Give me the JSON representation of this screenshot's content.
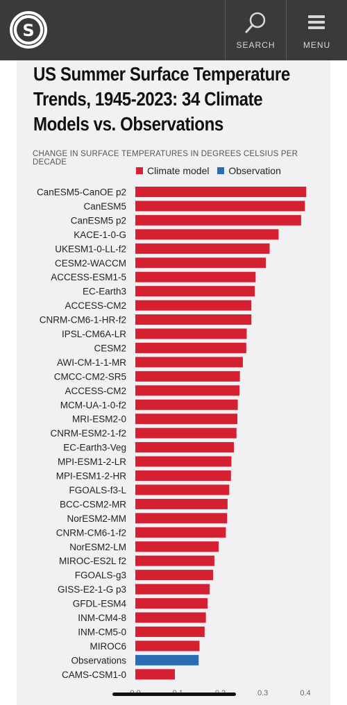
{
  "header": {
    "logo_text": "S",
    "search_label": "SEARCH",
    "menu_label": "MENU"
  },
  "colors": {
    "climate_model": "#d42031",
    "observation": "#2a6db5"
  },
  "chart_data": {
    "type": "bar",
    "orientation": "horizontal",
    "title": "US Summer Surface Temperature Trends, 1945-2023: 34 Climate Models vs. Observations",
    "subtitle": "CHANGE IN SURFACE TEMPERATURES IN DEGREES CELSIUS PER DECADE",
    "legend": [
      "Climate model",
      "Observation"
    ],
    "legend_position": "top-center",
    "xlim": [
      0,
      0.4
    ],
    "x_ticks": [
      "0.0",
      "0.1",
      "0.2",
      "0.3",
      "0.4"
    ],
    "grid": false,
    "categories": [
      "CanESM5-CanOE p2",
      "CanESM5",
      "CanESM5 p2",
      "KACE-1-0-G",
      "UKESM1-0-LL-f2",
      "CESM2-WACCM",
      "ACCESS-ESM1-5",
      "EC-Earth3",
      "ACCESS-CM2",
      "CNRM-CM6-1-HR-f2",
      "IPSL-CM6A-LR",
      "CESM2",
      "AWI-CM-1-1-MR",
      "CMCC-CM2-SR5",
      "ACCESS-CM2",
      "MCM-UA-1-0-f2",
      "MRI-ESM2-0",
      "CNRM-ESM2-1-f2",
      "EC-Earth3-Veg",
      "MPI-ESM1-2-LR",
      "MPI-ESM1-2-HR",
      "FGOALS-f3-L",
      "BCC-CSM2-MR",
      "NorESM2-MM",
      "CNRM-CM6-1-f2",
      "NorESM2-LM",
      "MIROC-ES2L f2",
      "FGOALS-g3",
      "GISS-E2-1-G p3",
      "GFDL-ESM4",
      "INM-CM4-8",
      "INM-CM5-0",
      "MIROC6",
      "Observations",
      "CAMS-CSM1-0"
    ],
    "values": [
      0.402,
      0.399,
      0.39,
      0.337,
      0.316,
      0.307,
      0.283,
      0.281,
      0.273,
      0.273,
      0.262,
      0.261,
      0.253,
      0.246,
      0.245,
      0.241,
      0.24,
      0.238,
      0.232,
      0.226,
      0.225,
      0.221,
      0.217,
      0.216,
      0.213,
      0.196,
      0.186,
      0.183,
      0.175,
      0.17,
      0.166,
      0.163,
      0.151,
      0.149,
      0.093
    ],
    "kinds": [
      "model",
      "model",
      "model",
      "model",
      "model",
      "model",
      "model",
      "model",
      "model",
      "model",
      "model",
      "model",
      "model",
      "model",
      "model",
      "model",
      "model",
      "model",
      "model",
      "model",
      "model",
      "model",
      "model",
      "model",
      "model",
      "model",
      "model",
      "model",
      "model",
      "model",
      "model",
      "model",
      "model",
      "observation",
      "model"
    ]
  }
}
